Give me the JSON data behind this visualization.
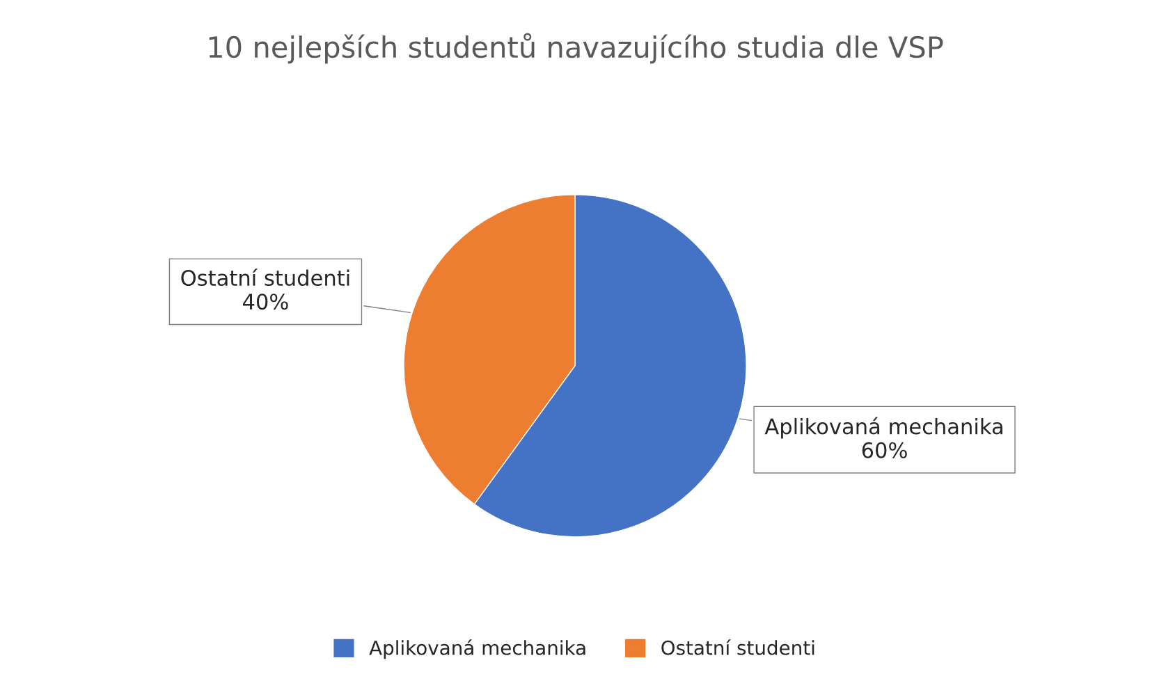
{
  "chart_data": {
    "type": "pie",
    "title": "10 nejlepších studentů navazujícího studia dle VSP",
    "categories": [
      "Aplikovaná mechanika",
      "Ostatní studenti"
    ],
    "values": [
      60,
      40
    ],
    "colors": [
      "#4472c4",
      "#ed7d31"
    ],
    "value_labels": [
      "60%",
      "40%"
    ],
    "legend": "bottom"
  }
}
